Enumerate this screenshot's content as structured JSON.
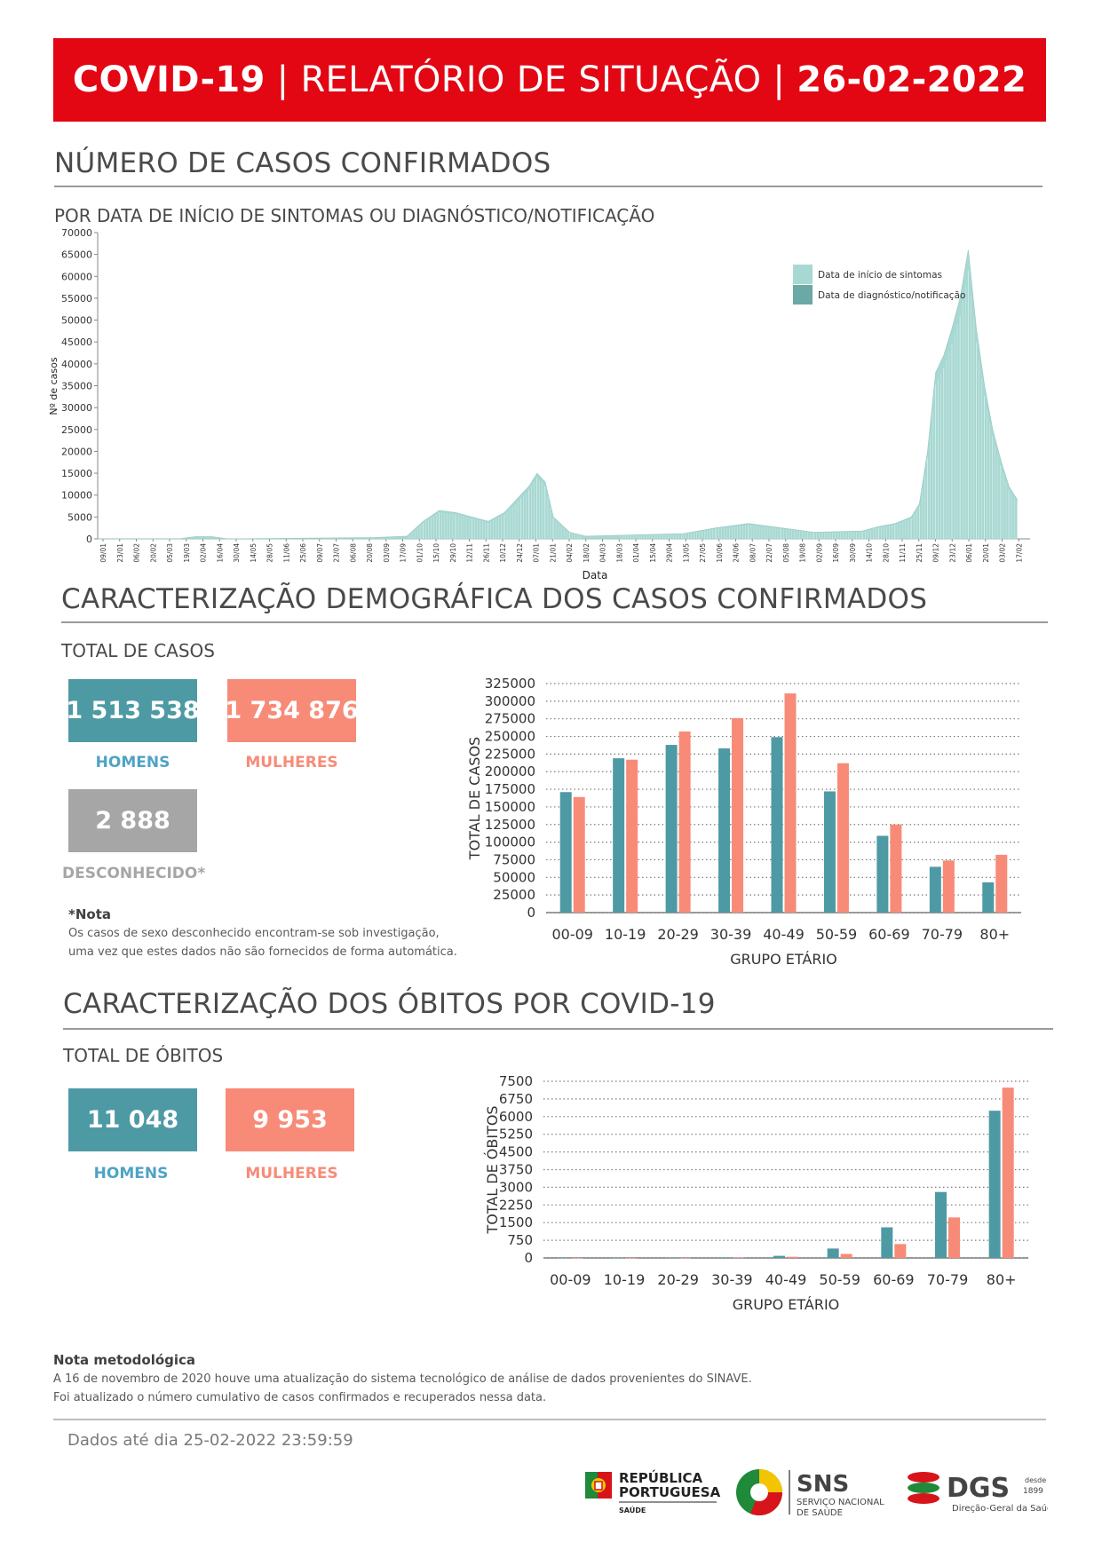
{
  "banner": {
    "prefix": "COVID-19",
    "middle": " | RELATÓRIO DE SITUAÇÃO | ",
    "date": "26-02-2022"
  },
  "section1": {
    "title": "NÚMERO DE CASOS CONFIRMADOS",
    "subtitle": "POR DATA DE INÍCIO DE SINTOMAS OU DIAGNÓSTICO/NOTIFICAÇÃO"
  },
  "section2": {
    "title": "CARACTERIZAÇÃO DEMOGRÁFICA DOS CASOS CONFIRMADOS",
    "subtitle": "TOTAL DE CASOS",
    "men_value": "1 513 538",
    "men_label": "HOMENS",
    "women_value": "1 734 876",
    "women_label": "MULHERES",
    "unknown_value": "2 888",
    "unknown_label": "DESCONHECIDO*",
    "note_title": "*Nota",
    "note_lines": [
      "Os casos de sexo desconhecido encontram-se sob investigação,",
      "uma vez que estes dados não são fornecidos de forma automática."
    ]
  },
  "section3": {
    "title": "CARACTERIZAÇÃO DOS ÓBITOS POR COVID-19",
    "subtitle": "TOTAL DE ÓBITOS",
    "men_value": "11 048",
    "men_label": "HOMENS",
    "women_value": "9 953",
    "women_label": "MULHERES"
  },
  "methodology": {
    "title": "Nota metodológica",
    "lines": [
      "A 16 de novembro de 2020 houve uma atualização do sistema tecnológico de análise de dados provenientes do SINAVE.",
      "Foi atualizado o número cumulativo de casos confirmados e recuperados nessa data."
    ]
  },
  "footer": {
    "data_date": "Dados até dia 25-02-2022 23:59:59",
    "logos": {
      "republica": [
        "REPÚBLICA",
        "PORTUGUESA",
        "SAÚDE"
      ],
      "sns": [
        "SNS",
        "SERVIÇO NACIONAL",
        "DE SAÚDE"
      ],
      "dgs": [
        "DGS",
        "desde",
        "1899",
        "Direção-Geral da Saúde"
      ]
    }
  },
  "colors": {
    "banner": "#e30613",
    "men": "#4e9aa4",
    "women": "#f78b78",
    "unknown": "#a6a6a6",
    "symptoms": "#a8d8d2",
    "diagnosis": "#6aa9a6"
  },
  "chart_data": [
    {
      "type": "area",
      "title": "",
      "xlabel": "Data",
      "ylabel": "Nº de casos",
      "ylim": [
        0,
        70000
      ],
      "yticks": [
        0,
        5000,
        10000,
        15000,
        20000,
        25000,
        30000,
        35000,
        40000,
        45000,
        50000,
        55000,
        60000,
        65000,
        70000
      ],
      "x_tick_labels": [
        "09/01",
        "23/01",
        "06/02",
        "20/02",
        "05/03",
        "19/03",
        "02/04",
        "16/04",
        "30/04",
        "14/05",
        "28/05",
        "11/06",
        "25/06",
        "09/07",
        "23/07",
        "06/08",
        "20/08",
        "03/09",
        "17/09",
        "01/10",
        "15/10",
        "29/10",
        "12/11",
        "26/11",
        "10/12",
        "24/12",
        "07/01",
        "21/01",
        "04/02",
        "18/02",
        "04/03",
        "18/03",
        "01/04",
        "15/04",
        "29/04",
        "13/05",
        "27/05",
        "10/06",
        "24/06",
        "08/07",
        "22/07",
        "05/08",
        "19/08",
        "02/09",
        "16/09",
        "30/09",
        "14/10",
        "28/10",
        "11/11",
        "25/11",
        "09/12",
        "23/12",
        "06/01",
        "20/01",
        "03/02",
        "17/02"
      ],
      "legend": [
        "Data de início de sintomas",
        "Data de diagnóstico/notificação"
      ],
      "legend_position": "top-right",
      "series": [
        {
          "name": "Data de início de sintomas",
          "points": [
            [
              0,
              0
            ],
            [
              5,
              0
            ],
            [
              6,
              500
            ],
            [
              7,
              500
            ],
            [
              8,
              0
            ],
            [
              17,
              300
            ],
            [
              19,
              600
            ],
            [
              20,
              4000
            ],
            [
              21,
              6500
            ],
            [
              22,
              6000
            ],
            [
              23,
              5000
            ],
            [
              24,
              4000
            ],
            [
              25,
              6000
            ],
            [
              26,
              10000
            ],
            [
              26.5,
              12000
            ],
            [
              27,
              15000
            ],
            [
              27.5,
              13000
            ],
            [
              28,
              5000
            ],
            [
              29,
              1500
            ],
            [
              30,
              600
            ],
            [
              36,
              1200
            ],
            [
              38,
              2500
            ],
            [
              40,
              3500
            ],
            [
              42,
              2500
            ],
            [
              44,
              1500
            ],
            [
              47,
              1800
            ],
            [
              48,
              2800
            ],
            [
              49,
              3500
            ],
            [
              50,
              5000
            ],
            [
              50.5,
              8000
            ],
            [
              51,
              20000
            ],
            [
              51.5,
              38000
            ],
            [
              52,
              42000
            ],
            [
              52.5,
              48000
            ],
            [
              53,
              55000
            ],
            [
              53.5,
              66000
            ],
            [
              54,
              48000
            ],
            [
              54.5,
              35000
            ],
            [
              55,
              25000
            ],
            [
              55.5,
              18000
            ],
            [
              56,
              12000
            ],
            [
              56.5,
              9000
            ]
          ]
        },
        {
          "name": "Data de diagnóstico/notificação",
          "points": []
        }
      ]
    },
    {
      "type": "bar",
      "title": "",
      "xlabel": "GRUPO ETÁRIO",
      "ylabel": "TOTAL DE CASOS",
      "ylim": [
        0,
        325000
      ],
      "yticks": [
        0,
        25000,
        50000,
        75000,
        100000,
        125000,
        150000,
        175000,
        200000,
        225000,
        250000,
        275000,
        300000,
        325000
      ],
      "categories": [
        "00-09",
        "10-19",
        "20-29",
        "30-39",
        "40-49",
        "50-59",
        "60-69",
        "70-79",
        "80+"
      ],
      "series": [
        {
          "name": "HOMENS",
          "values": [
            171000,
            219000,
            238000,
            233000,
            249000,
            172000,
            109000,
            65000,
            43000
          ]
        },
        {
          "name": "MULHERES",
          "values": [
            164000,
            217000,
            257000,
            276000,
            311000,
            212000,
            125000,
            74000,
            82000
          ]
        }
      ]
    },
    {
      "type": "bar",
      "title": "",
      "xlabel": "GRUPO ETÁRIO",
      "ylabel": "TOTAL DE ÓBITOS",
      "ylim": [
        0,
        7500
      ],
      "yticks": [
        0,
        750,
        1500,
        2250,
        3000,
        3750,
        4500,
        5250,
        6000,
        6750,
        7500
      ],
      "categories": [
        "00-09",
        "10-19",
        "20-29",
        "30-39",
        "40-49",
        "50-59",
        "60-69",
        "70-79",
        "80+"
      ],
      "series": [
        {
          "name": "HOMENS",
          "values": [
            3,
            4,
            10,
            25,
            90,
            400,
            1300,
            2800,
            6250
          ]
        },
        {
          "name": "MULHERES",
          "values": [
            2,
            3,
            6,
            15,
            50,
            170,
            590,
            1720,
            7230
          ]
        }
      ]
    }
  ]
}
